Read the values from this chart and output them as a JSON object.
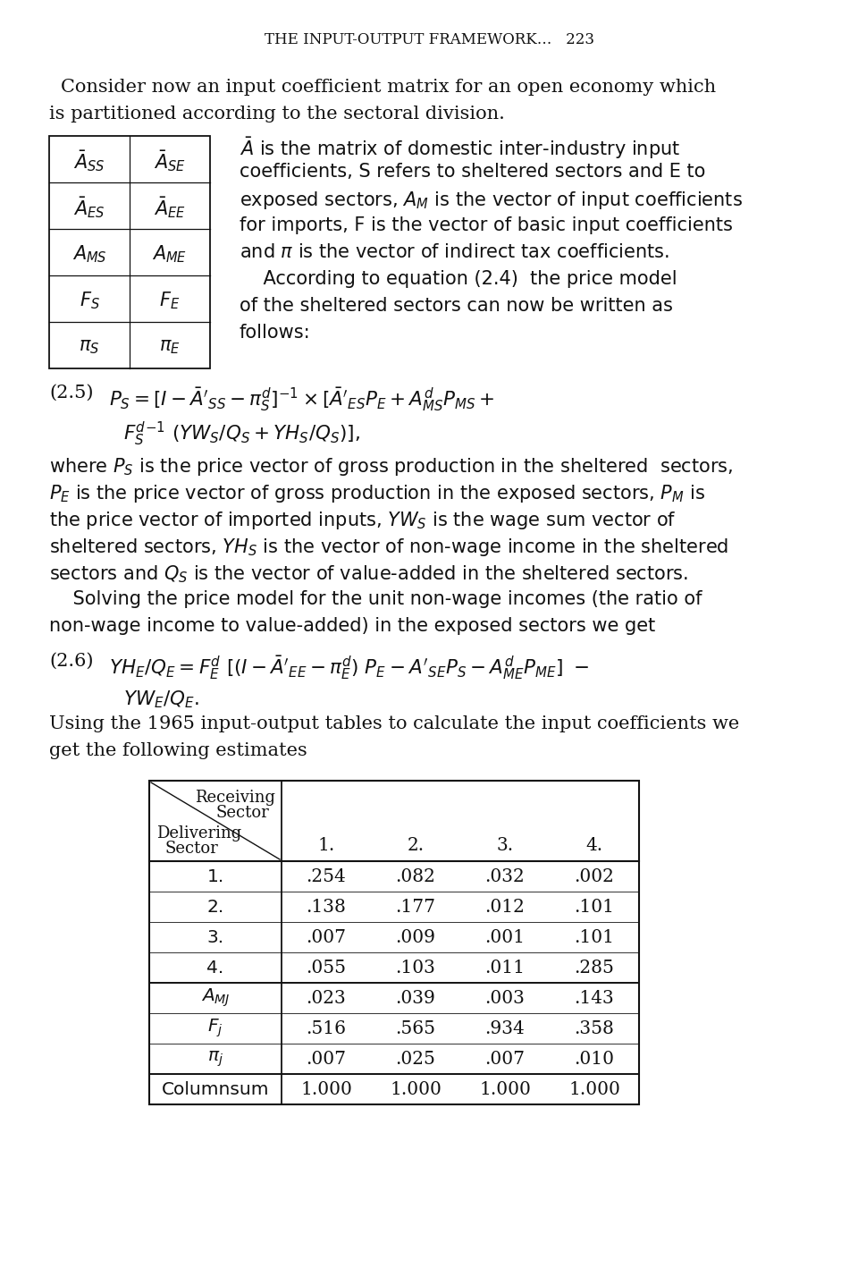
{
  "bg_color": "#ffffff",
  "text_color": "#111111",
  "header": "THE INPUT-OUTPUT FRAMEWORK…   223",
  "para1_line1": "Consider now an input coefficient matrix for an open economy which",
  "para1_line2": "is partitioned according to the sectoral division.",
  "matrix_rows": [
    [
      "$\\bar{A}_{SS}$",
      "$\\bar{A}_{SE}$"
    ],
    [
      "$\\bar{A}_{ES}$",
      "$\\bar{A}_{EE}$"
    ],
    [
      "$A_{MS}$",
      "$A_{ME}$"
    ],
    [
      "$F_S$",
      "$F_E$"
    ],
    [
      "$\\pi_S$",
      "$\\pi_E$"
    ]
  ],
  "desc_lines": [
    "$\\bar{A}$ is the matrix of domestic inter-industry input",
    "coefficients, S refers to sheltered sectors and E to",
    "exposed sectors, $A_M$ is the vector of input coefficients",
    "for imports, F is the vector of basic input coefficients",
    "and $\\pi$ is the vector of indirect tax coefficients.",
    "    According to equation (2.4)  the price model",
    "of the sheltered sectors can now be written as",
    "follows:"
  ],
  "eq25_label": "(2.5)",
  "eq25_l1": "$P_S = [I - \\bar{A}'_{SS} - \\pi^{d}_{S}]^{-1} \\times [\\bar{A}'_{ES}P_E + A^{d}_{MS}P_{MS} +$",
  "eq25_l2": "$F^{d}_{S}{}^{-1}\\ (YW_S/Q_S + YH_S/Q_S)],$",
  "para2_lines": [
    "where $P_S$ is the price vector of gross production in the sheltered  sectors,",
    "$P_E$ is the price vector of gross production in the exposed sectors, $P_M$ is",
    "the price vector of imported inputs, $YW_S$ is the wage sum vector of",
    "sheltered sectors, $YH_S$ is the vector of non-wage income in the sheltered",
    "sectors and $Q_S$ is the vector of value-added in the sheltered sectors.",
    "    Solving the price model for the unit non-wage incomes (the ratio of",
    "non-wage income to value-added) in the exposed sectors we get"
  ],
  "eq26_label": "(2.6)",
  "eq26_l1": "$YH_E/Q_E = F^{d}_{E}\\ [(I - \\bar{A}'_{EE} - \\pi^{d}_{E})\\ P_E - A'_{SE}P_S - A^{d}_{ME}P_{ME}]\\ -$",
  "eq26_l2": "$YW_E/Q_E.$",
  "para3_lines": [
    "Using the 1965 input-output tables to calculate the input coefficients we",
    "get the following estimates"
  ],
  "table_col_headers": [
    "1.",
    "2.",
    "3.",
    "4."
  ],
  "table_row_labels": [
    "1.",
    "2.",
    "3.",
    "4.",
    "$A_{MJ}$",
    "$F_j$",
    "$\\pi_j$",
    "Columnsum"
  ],
  "table_data": [
    [
      ".254",
      ".082",
      ".032",
      ".002"
    ],
    [
      ".138",
      ".177",
      ".012",
      ".101"
    ],
    [
      ".007",
      ".009",
      ".001",
      ".101"
    ],
    [
      ".055",
      ".103",
      ".011",
      ".285"
    ],
    [
      ".023",
      ".039",
      ".003",
      ".143"
    ],
    [
      ".516",
      ".565",
      ".934",
      ".358"
    ],
    [
      ".007",
      ".025",
      ".007",
      ".010"
    ],
    [
      "1.000",
      "1.000",
      "1.000",
      "1.000"
    ]
  ]
}
